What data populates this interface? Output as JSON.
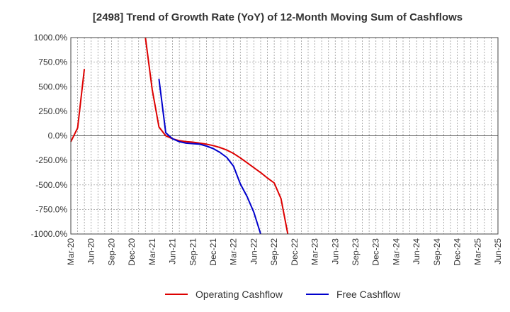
{
  "chart_data": {
    "type": "line",
    "title": "[2498]  Trend of Growth Rate (YoY) of 12-Month Moving Sum of Cashflows",
    "xlabel": "",
    "ylabel": "",
    "ylim": [
      -1000,
      1000
    ],
    "y_tick_values": [
      1000,
      750,
      500,
      250,
      0,
      -250,
      -500,
      -750,
      -1000
    ],
    "y_tick_labels": [
      "1000.0%",
      "750.0%",
      "500.0%",
      "250.0%",
      "0.0%",
      "-250.0%",
      "-500.0%",
      "-750.0%",
      "-1000.0%"
    ],
    "x_range": [
      "2020-03",
      "2025-06"
    ],
    "x_tick_labels": [
      "Mar-20",
      "Jun-20",
      "Sep-20",
      "Dec-20",
      "Mar-21",
      "Jun-21",
      "Sep-21",
      "Dec-21",
      "Mar-22",
      "Jun-22",
      "Sep-22",
      "Dec-22",
      "Mar-23",
      "Jun-23",
      "Sep-23",
      "Dec-23",
      "Mar-24",
      "Jun-24",
      "Sep-24",
      "Dec-24",
      "Mar-25",
      "Jun-25"
    ],
    "grid": true,
    "legend_position": "bottom-center",
    "series": [
      {
        "name": "Operating Cashflow",
        "color": "#dd0000",
        "points": [
          [
            "2020-03",
            -60
          ],
          [
            "2020-04",
            80
          ],
          [
            "2020-05",
            680
          ],
          null,
          [
            "2021-02",
            1000
          ],
          [
            "2021-03",
            470
          ],
          [
            "2021-04",
            90
          ],
          [
            "2021-05",
            0
          ],
          [
            "2021-06",
            -30
          ],
          [
            "2021-07",
            -50
          ],
          [
            "2021-08",
            -60
          ],
          [
            "2021-09",
            -65
          ],
          [
            "2021-10",
            -75
          ],
          [
            "2021-11",
            -85
          ],
          [
            "2021-12",
            -100
          ],
          [
            "2022-01",
            -120
          ],
          [
            "2022-02",
            -145
          ],
          [
            "2022-03",
            -180
          ],
          [
            "2022-04",
            -225
          ],
          [
            "2022-05",
            -275
          ],
          [
            "2022-06",
            -325
          ],
          [
            "2022-07",
            -375
          ],
          [
            "2022-08",
            -430
          ],
          [
            "2022-09",
            -480
          ],
          [
            "2022-10",
            -640
          ],
          [
            "2022-11",
            -1000
          ]
        ]
      },
      {
        "name": "Free Cashflow",
        "color": "#0000cc",
        "points": [
          [
            "2021-04",
            580
          ],
          [
            "2021-05",
            30
          ],
          [
            "2021-06",
            -30
          ],
          [
            "2021-07",
            -60
          ],
          [
            "2021-08",
            -75
          ],
          [
            "2021-09",
            -80
          ],
          [
            "2021-10",
            -85
          ],
          [
            "2021-11",
            -105
          ],
          [
            "2021-12",
            -130
          ],
          [
            "2022-01",
            -170
          ],
          [
            "2022-02",
            -220
          ],
          [
            "2022-03",
            -310
          ],
          [
            "2022-04",
            -490
          ],
          [
            "2022-05",
            -620
          ],
          [
            "2022-06",
            -780
          ],
          [
            "2022-07",
            -1000
          ]
        ]
      }
    ]
  }
}
